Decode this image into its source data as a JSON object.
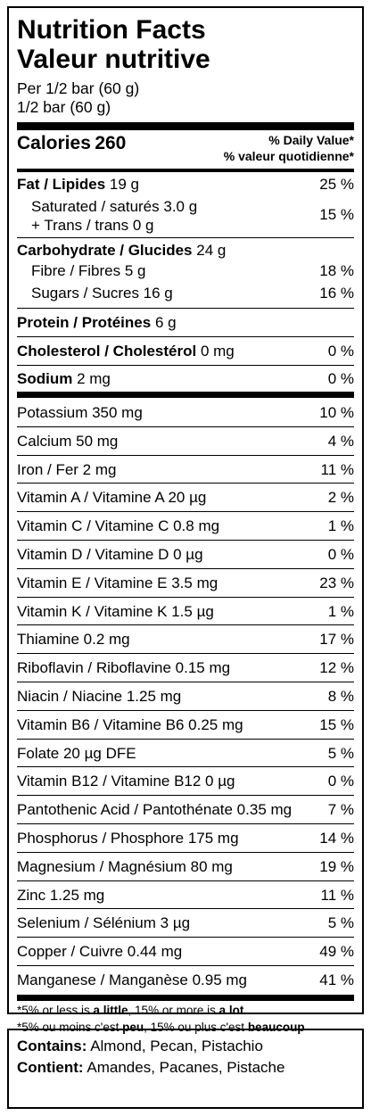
{
  "title_en": "Nutrition Facts",
  "title_fr": "Valeur nutritive",
  "serving_en": "Per 1/2 bar (60 g)",
  "serving_fr": "1/2 bar (60 g)",
  "calories_label": "Calories",
  "calories_value": "260",
  "dv_header_en": "% Daily Value*",
  "dv_header_fr": "% valeur quotidienne*",
  "fat": {
    "label": "Fat / Lipides",
    "amount": "19 g",
    "pct": "25 %"
  },
  "saturated": {
    "label": "Saturated / saturés 3.0 g"
  },
  "trans": {
    "label": "+ Trans / trans 0 g"
  },
  "sat_trans_pct": "15 %",
  "carb": {
    "label": "Carbohydrate / Glucides",
    "amount": "24 g"
  },
  "fibre": {
    "label": "Fibre / Fibres 5 g",
    "pct": "18 %"
  },
  "sugars": {
    "label": "Sugars / Sucres 16 g",
    "pct": "16 %"
  },
  "protein": {
    "label": "Protein / Protéines",
    "amount": "6 g"
  },
  "cholesterol": {
    "label": "Cholesterol / Cholestérol",
    "amount": "0 mg",
    "pct": "0 %"
  },
  "sodium": {
    "label": "Sodium",
    "amount": "2 mg",
    "pct": "0 %"
  },
  "minerals": [
    {
      "label": "Potassium 350 mg",
      "pct": "10 %"
    },
    {
      "label": "Calcium 50 mg",
      "pct": "4 %"
    },
    {
      "label": "Iron / Fer 2 mg",
      "pct": "11 %"
    },
    {
      "label": "Vitamin A / Vitamine A 20 µg",
      "pct": "2 %"
    },
    {
      "label": "Vitamin C / Vitamine C 0.8 mg",
      "pct": "1 %"
    },
    {
      "label": "Vitamin D / Vitamine D 0 µg",
      "pct": "0 %"
    },
    {
      "label": "Vitamin E / Vitamine E 3.5 mg",
      "pct": "23 %"
    },
    {
      "label": "Vitamin K / Vitamine K 1.5 µg",
      "pct": "1 %"
    },
    {
      "label": "Thiamine 0.2 mg",
      "pct": "17 %"
    },
    {
      "label": "Riboflavin / Riboflavine 0.15 mg",
      "pct": "12 %"
    },
    {
      "label": "Niacin / Niacine 1.25 mg",
      "pct": "8 %"
    },
    {
      "label": "Vitamin B6 / Vitamine B6 0.25 mg",
      "pct": "15 %"
    },
    {
      "label": "Folate 20 µg DFE",
      "pct": "5 %"
    },
    {
      "label": "Vitamin B12 / Vitamine B12 0 µg",
      "pct": "0 %"
    },
    {
      "label": "Pantothenic Acid / Pantothénate 0.35 mg",
      "pct": "7 %"
    },
    {
      "label": "Phosphorus / Phosphore 175 mg",
      "pct": "14 %"
    },
    {
      "label": "Magnesium / Magnésium 80 mg",
      "pct": "19 %"
    },
    {
      "label": "Zinc 1.25 mg",
      "pct": "11 %"
    },
    {
      "label": "Selenium / Sélénium 3 µg",
      "pct": "5 %"
    },
    {
      "label": "Copper / Cuivre 0.44 mg",
      "pct": "49 %"
    },
    {
      "label": "Manganese / Manganèse 0.95 mg",
      "pct": "41 %"
    }
  ],
  "footnote_en": {
    "a": "*5% or less is ",
    "b": "a little",
    "c": ", 15% or more is ",
    "d": "a lot"
  },
  "footnote_fr": {
    "a": "*5% ou moins c'est ",
    "b": "peu",
    "c": ", 15% ou plus c'est ",
    "d": "beaucoup"
  },
  "contains_label": "Contains:",
  "contains_value": "Almond, Pecan, Pistachio",
  "contient_label": "Contient:",
  "contient_value": "Amandes, Pacanes, Pistache"
}
